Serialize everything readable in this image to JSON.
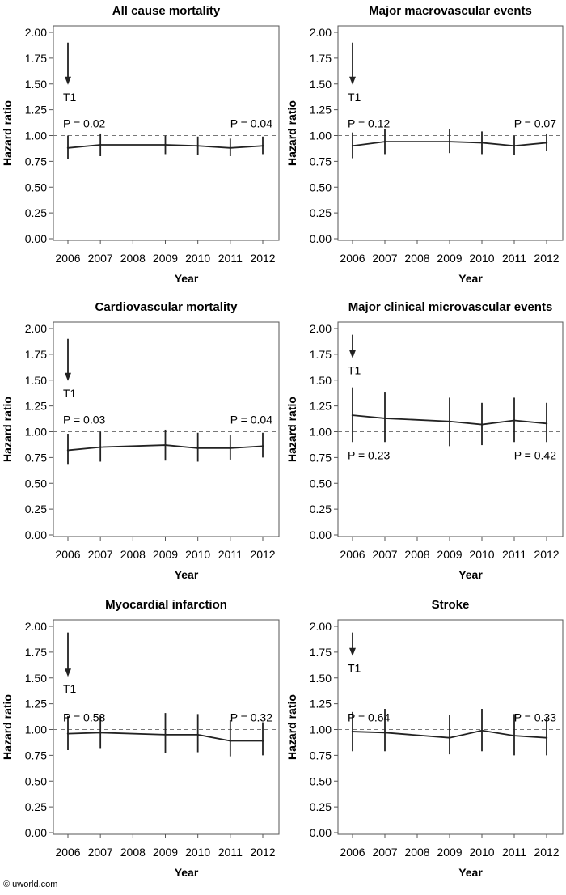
{
  "credit": "© uworld.com",
  "shared": {
    "xlabel": "Year",
    "ylabel": "Hazard ratio",
    "x_ticks": [
      "2006",
      "2007",
      "2008",
      "2009",
      "2010",
      "2011",
      "2012"
    ],
    "y_ticks": [
      "0.00",
      "0.25",
      "0.50",
      "0.75",
      "1.00",
      "1.25",
      "1.50",
      "1.75",
      "2.00"
    ],
    "treatment_marker": "T1"
  },
  "chart_data": [
    {
      "type": "line",
      "title": "All cause mortality",
      "xlabel": "Year",
      "ylabel": "Hazard ratio",
      "ylim": [
        0,
        2
      ],
      "xlim": [
        2006,
        2012
      ],
      "reference_line": 1.0,
      "x": [
        2006,
        2007,
        2009,
        2010,
        2011,
        2012
      ],
      "series": [
        {
          "values": [
            0.88,
            0.91,
            0.91,
            0.9,
            0.88,
            0.9
          ]
        }
      ],
      "ci_lower": [
        0.77,
        0.8,
        0.82,
        0.81,
        0.8,
        0.82
      ],
      "ci_upper": [
        1.0,
        1.02,
        1.0,
        0.99,
        0.97,
        0.99
      ],
      "p_left": "P = 0.02",
      "p_right": "P = 0.04",
      "arrow": {
        "x": 2006,
        "from": 1.9,
        "to": 1.5,
        "label": "T1"
      }
    },
    {
      "type": "line",
      "title": "Major macrovascular events",
      "xlabel": "Year",
      "ylabel": "Hazard ratio",
      "ylim": [
        0,
        2
      ],
      "xlim": [
        2006,
        2012
      ],
      "reference_line": 1.0,
      "x": [
        2006,
        2007,
        2009,
        2010,
        2011,
        2012
      ],
      "series": [
        {
          "values": [
            0.9,
            0.94,
            0.94,
            0.93,
            0.9,
            0.93
          ]
        }
      ],
      "ci_lower": [
        0.78,
        0.82,
        0.83,
        0.82,
        0.81,
        0.85
      ],
      "ci_upper": [
        1.03,
        1.06,
        1.06,
        1.04,
        1.0,
        1.02
      ],
      "p_left": "P = 0.12",
      "p_right": "P = 0.07",
      "arrow": {
        "x": 2006,
        "from": 1.9,
        "to": 1.5,
        "label": "T1"
      }
    },
    {
      "type": "line",
      "title": "Cardiovascular mortality",
      "xlabel": "Year",
      "ylabel": "Hazard ratio",
      "ylim": [
        0,
        2
      ],
      "xlim": [
        2006,
        2012
      ],
      "reference_line": 1.0,
      "x": [
        2006,
        2007,
        2009,
        2010,
        2011,
        2012
      ],
      "series": [
        {
          "values": [
            0.82,
            0.85,
            0.87,
            0.84,
            0.84,
            0.86
          ]
        }
      ],
      "ci_lower": [
        0.68,
        0.71,
        0.72,
        0.71,
        0.73,
        0.75
      ],
      "ci_upper": [
        0.98,
        1.0,
        1.02,
        0.99,
        0.97,
        0.99
      ],
      "p_left": "P = 0.03",
      "p_right": "P = 0.04",
      "arrow": {
        "x": 2006,
        "from": 1.9,
        "to": 1.5,
        "label": "T1"
      }
    },
    {
      "type": "line",
      "title": "Major clinical microvascular events",
      "xlabel": "Year",
      "ylabel": "Hazard ratio",
      "ylim": [
        0,
        2
      ],
      "xlim": [
        2006,
        2012
      ],
      "reference_line": 1.0,
      "x": [
        2006,
        2007,
        2009,
        2010,
        2011,
        2012
      ],
      "series": [
        {
          "values": [
            1.16,
            1.13,
            1.1,
            1.07,
            1.11,
            1.08
          ]
        }
      ],
      "ci_lower": [
        0.9,
        0.9,
        0.86,
        0.87,
        0.9,
        0.9
      ],
      "ci_upper": [
        1.43,
        1.38,
        1.33,
        1.28,
        1.33,
        1.28
      ],
      "p_left": "P = 0.23",
      "p_right": "P = 0.42",
      "arrow": {
        "x": 2006,
        "from": 1.94,
        "to": 1.72,
        "label": "T1"
      }
    },
    {
      "type": "line",
      "title": "Myocardial infarction",
      "xlabel": "Year",
      "ylabel": "Hazard ratio",
      "ylim": [
        0,
        2
      ],
      "xlim": [
        2006,
        2012
      ],
      "reference_line": 1.0,
      "x": [
        2006,
        2007,
        2009,
        2010,
        2011,
        2012
      ],
      "series": [
        {
          "values": [
            0.96,
            0.97,
            0.95,
            0.95,
            0.89,
            0.89
          ]
        }
      ],
      "ci_lower": [
        0.8,
        0.82,
        0.77,
        0.78,
        0.74,
        0.75
      ],
      "ci_upper": [
        1.13,
        1.13,
        1.16,
        1.15,
        1.09,
        1.07
      ],
      "p_left": "P = 0.58",
      "p_right": "P = 0.32",
      "arrow": {
        "x": 2006,
        "from": 1.94,
        "to": 1.52,
        "label": "T1"
      }
    },
    {
      "type": "line",
      "title": "Stroke",
      "xlabel": "Year",
      "ylabel": "Hazard ratio",
      "ylim": [
        0,
        2
      ],
      "xlim": [
        2006,
        2012
      ],
      "reference_line": 1.0,
      "x": [
        2006,
        2007,
        2009,
        2010,
        2011,
        2012
      ],
      "series": [
        {
          "values": [
            0.98,
            0.97,
            0.92,
            0.99,
            0.94,
            0.92
          ]
        }
      ],
      "ci_lower": [
        0.79,
        0.79,
        0.76,
        0.79,
        0.75,
        0.75
      ],
      "ci_upper": [
        1.17,
        1.2,
        1.14,
        1.2,
        1.15,
        1.12
      ],
      "p_left": "P = 0.64",
      "p_right": "P = 0.33",
      "arrow": {
        "x": 2006,
        "from": 1.94,
        "to": 1.72,
        "label": "T1"
      }
    }
  ]
}
